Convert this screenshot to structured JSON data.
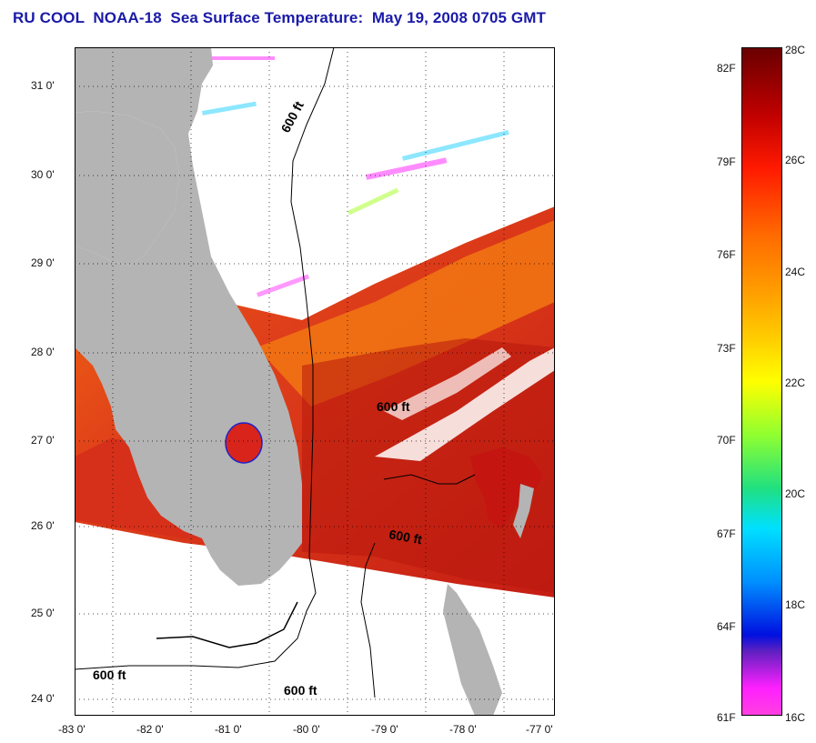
{
  "title": "RU COOL  NOAA-18  Sea Surface Temperature:  May 19, 2008 0705 GMT",
  "map": {
    "lat_ticks": [
      "31 0'",
      "30 0'",
      "29 0'",
      "28 0'",
      "27 0'",
      "26 0'",
      "25 0'",
      "24 0'"
    ],
    "lon_ticks": [
      "-83 0'",
      "-82 0'",
      "-81 0'",
      "-80 0'",
      "-79 0'",
      "-78 0'",
      "-77 0'"
    ],
    "contour_labels": [
      "600 ft",
      "600 ft",
      "600 ft",
      "600 ft",
      "600 ft"
    ],
    "colors": {
      "land": "#b4b4b4",
      "cloud": "#ffffff",
      "warm_water": "#d42a12",
      "cool_water": "#f05a14"
    }
  },
  "colorbar": {
    "fahrenheit": [
      "82F",
      "79F",
      "76F",
      "73F",
      "70F",
      "67F",
      "64F",
      "61F"
    ],
    "celsius": [
      "28C",
      "26C",
      "24C",
      "22C",
      "20C",
      "18C",
      "16C"
    ],
    "range_c": [
      16,
      28
    ],
    "range_f": [
      61,
      82
    ]
  }
}
